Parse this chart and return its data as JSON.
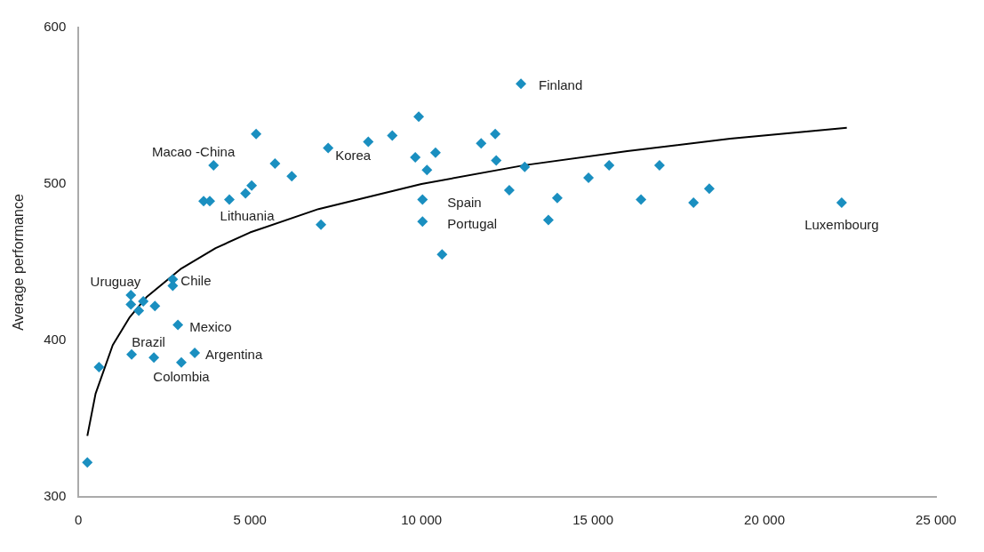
{
  "chart_data": {
    "type": "scatter",
    "ylabel": "Average performance",
    "xlim": [
      0,
      25000
    ],
    "ylim": [
      300,
      600
    ],
    "xticks": [
      0,
      {
        "value": 5000,
        "label": "5 000"
      },
      {
        "value": 10000,
        "label": "10 000"
      },
      {
        "value": 15000,
        "label": "15 000"
      },
      {
        "value": 20000,
        "label": "20 000"
      },
      {
        "value": 25000,
        "label": "25 000"
      }
    ],
    "yticks": [
      300,
      400,
      500,
      600
    ],
    "grid": false,
    "legend": false,
    "series": [
      {
        "type": "scatter",
        "color": "#1a8fc0",
        "marker": "diamond",
        "x": [
          260,
          600,
          1530,
          1530,
          1890,
          1760,
          2230,
          1550,
          2200,
          2750,
          2750,
          2900,
          3000,
          3390,
          3940,
          3650,
          3830,
          4400,
          4870,
          5050,
          5180,
          5730,
          6220,
          7070,
          7280,
          8450,
          9150,
          9820,
          9920,
          10160,
          10410,
          10030,
          10030,
          10600,
          11740,
          12150,
          12180,
          12560,
          12900,
          13010,
          13700,
          13960,
          14870,
          15470,
          16400,
          16940,
          17930,
          18390,
          22250
        ],
        "values": [
          322,
          383,
          429,
          423,
          425,
          419,
          422,
          391,
          389,
          439,
          435,
          410,
          386,
          392,
          512,
          489,
          489,
          490,
          494,
          499,
          532,
          513,
          505,
          474,
          523,
          527,
          531,
          517,
          543,
          509,
          520,
          490,
          476,
          455,
          526,
          532,
          515,
          496,
          564,
          511,
          477,
          491,
          504,
          512,
          490,
          512,
          488,
          497,
          488
        ]
      },
      {
        "type": "line",
        "color": "#000000",
        "marker": "none",
        "x": [
          260,
          500,
          1000,
          1500,
          2000,
          3000,
          4000,
          5000,
          7000,
          10000,
          13000,
          16000,
          19000,
          22400
        ],
        "values": [
          339,
          366,
          397,
          415,
          428,
          446,
          459,
          469,
          484,
          500,
          512,
          521,
          529,
          536
        ]
      }
    ],
    "annotations": [
      {
        "text": "Finland",
        "x": 12900,
        "y": 564
      },
      {
        "text": "Korea",
        "x": 7280,
        "y": 523
      },
      {
        "text": "Macao -China",
        "x": 3940,
        "y": 512
      },
      {
        "text": "Lithuania",
        "x": 4400,
        "y": 490
      },
      {
        "text": "Spain",
        "x": 10030,
        "y": 490
      },
      {
        "text": "Portugal",
        "x": 10030,
        "y": 476
      },
      {
        "text": "Luxembourg",
        "x": 22250,
        "y": 488
      },
      {
        "text": "Uruguay",
        "x": 1530,
        "y": 429
      },
      {
        "text": "Chile",
        "x": 2750,
        "y": 439
      },
      {
        "text": "Mexico",
        "x": 2900,
        "y": 410
      },
      {
        "text": "Brazil",
        "x": 1550,
        "y": 391
      },
      {
        "text": "Argentina",
        "x": 3390,
        "y": 392
      },
      {
        "text": "Colombia",
        "x": 3000,
        "y": 386
      }
    ]
  }
}
